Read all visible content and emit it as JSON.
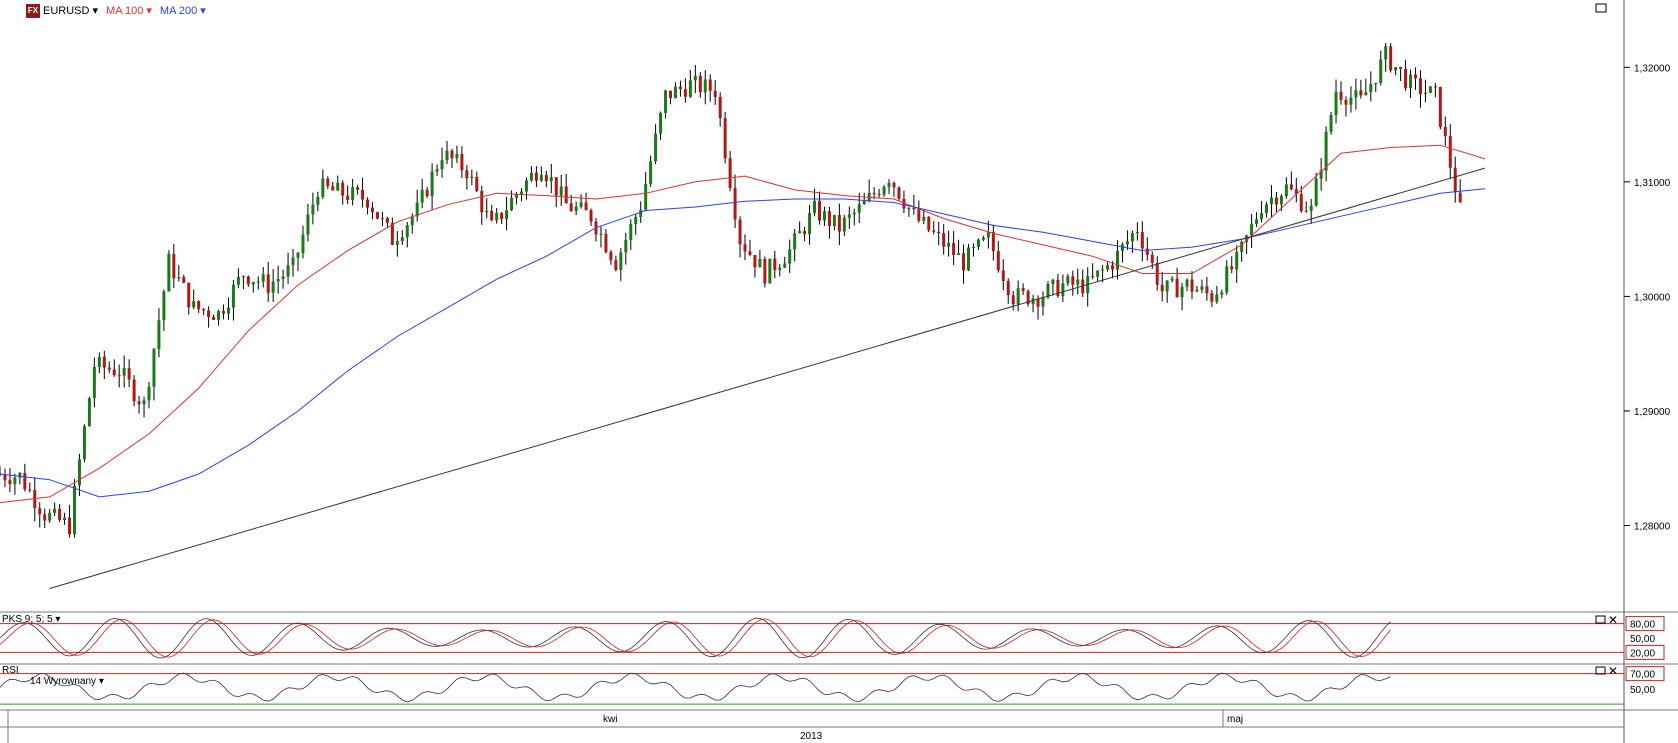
{
  "header": {
    "symbol": "EURUSD",
    "ma100_label": "MA 100",
    "ma200_label": "MA 200",
    "ma100_color": "#e03030",
    "ma200_color": "#2a3ff0",
    "fx_badge": "FX"
  },
  "indicators": {
    "stoch_label": "PKS 9; 5; 5",
    "rsi_label": "RSI",
    "rsi_sub": "14 Wyrownany",
    "stoch_levels": [
      "80,00",
      "50,00",
      "20,00"
    ],
    "rsi_levels": [
      "70,00",
      "50,00"
    ]
  },
  "time_axis": {
    "months": [
      "kwi",
      "maj"
    ],
    "year": "2013"
  },
  "chart_data": {
    "type": "line",
    "title": "",
    "series": [
      {
        "name": "EURUSD",
        "kind": "candlestick-close",
        "x": [
          0,
          5,
          10,
          15,
          20,
          25,
          30,
          35,
          40,
          45,
          50,
          55,
          60,
          65,
          70,
          75,
          80,
          85,
          90,
          95,
          100,
          105,
          110,
          115,
          120,
          125,
          130,
          135,
          140,
          145,
          150,
          155,
          160,
          165,
          170,
          175,
          180,
          185,
          190,
          195,
          200,
          205,
          210,
          215,
          220,
          225,
          230,
          235,
          240,
          245,
          250,
          255,
          260,
          265,
          270,
          275,
          280,
          285,
          290,
          295
        ],
        "values": [
          1.2845,
          1.2843,
          1.281,
          1.28,
          1.294,
          1.2935,
          1.2905,
          1.303,
          1.299,
          1.2985,
          1.302,
          1.301,
          1.3025,
          1.3095,
          1.309,
          1.3085,
          1.305,
          1.3075,
          1.3125,
          1.311,
          1.306,
          1.309,
          1.3115,
          1.308,
          1.307,
          1.303,
          1.308,
          1.3175,
          1.3185,
          1.318,
          1.305,
          1.302,
          1.304,
          1.3075,
          1.306,
          1.308,
          1.3105,
          1.307,
          1.305,
          1.303,
          1.305,
          1.3,
          1.3,
          1.301,
          1.301,
          1.303,
          1.306,
          1.3005,
          1.301,
          1.3,
          1.303,
          1.308,
          1.3095,
          1.3075,
          1.318,
          1.317,
          1.321,
          1.3185,
          1.3175,
          1.3075
        ]
      },
      {
        "name": "MA 100",
        "x": [
          0,
          10,
          20,
          30,
          40,
          50,
          60,
          70,
          80,
          90,
          100,
          110,
          120,
          130,
          140,
          150,
          160,
          170,
          180,
          190,
          200,
          210,
          220,
          230,
          240,
          250,
          260,
          270,
          280,
          290,
          299
        ],
        "values": [
          1.282,
          1.2825,
          1.285,
          1.288,
          1.292,
          1.297,
          1.301,
          1.304,
          1.3065,
          1.308,
          1.309,
          1.3088,
          1.3085,
          1.309,
          1.31,
          1.3105,
          1.3093,
          1.3088,
          1.3085,
          1.3068,
          1.3055,
          1.3045,
          1.3035,
          1.302,
          1.302,
          1.3045,
          1.3085,
          1.3125,
          1.313,
          1.3132,
          1.312
        ]
      },
      {
        "name": "MA 200",
        "x": [
          0,
          10,
          20,
          30,
          40,
          50,
          60,
          70,
          80,
          90,
          100,
          110,
          120,
          130,
          140,
          150,
          160,
          170,
          180,
          190,
          200,
          210,
          220,
          230,
          240,
          250,
          260,
          270,
          280,
          290,
          299
        ],
        "values": [
          1.2845,
          1.284,
          1.2825,
          1.283,
          1.2845,
          1.287,
          1.29,
          1.2935,
          1.2965,
          1.299,
          1.3015,
          1.3035,
          1.306,
          1.3075,
          1.3078,
          1.3083,
          1.3085,
          1.3085,
          1.3082,
          1.3072,
          1.3062,
          1.3056,
          1.3048,
          1.304,
          1.3043,
          1.305,
          1.306,
          1.307,
          1.308,
          1.309,
          1.3094
        ]
      },
      {
        "name": "Trendline",
        "x": [
          10,
          299
        ],
        "values": [
          1.2745,
          1.3112
        ]
      }
    ],
    "ylim": [
      1.2735,
      1.325
    ],
    "y_ticks": [
      "1,28000",
      "1,29000",
      "1,30000",
      "1,31000",
      "1,32000"
    ],
    "y_tick_values": [
      1.28,
      1.29,
      1.3,
      1.31,
      1.32
    ],
    "stoch": {
      "levels": [
        80,
        50,
        20
      ]
    },
    "rsi": {
      "levels": [
        70,
        50
      ]
    }
  }
}
